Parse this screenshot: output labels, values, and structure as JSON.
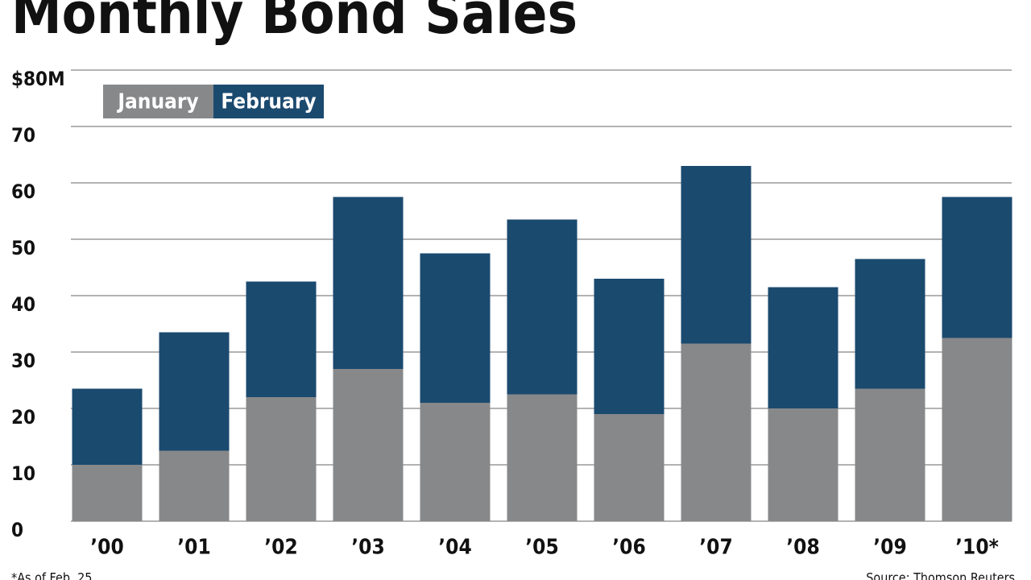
{
  "chart_data": {
    "type": "stacked_bar",
    "title": "Monthly Bond Sales",
    "categories": [
      "’00",
      "’01",
      "’02",
      "’03",
      "’04",
      "’05",
      "’06",
      "’07",
      "’08",
      "’09",
      "’10*"
    ],
    "series": [
      {
        "name": "January",
        "color": "#87888a",
        "values": [
          10,
          12.5,
          22,
          27,
          21,
          22.5,
          19,
          31.5,
          20,
          23.5,
          32.5
        ]
      },
      {
        "name": "February",
        "color": "#1b4a6f",
        "values": [
          13.5,
          21,
          20.5,
          30.5,
          26.5,
          31,
          24,
          31.5,
          21.5,
          23,
          25
        ]
      }
    ],
    "ylim": [
      0,
      80
    ],
    "yticks": [
      0,
      10,
      20,
      30,
      40,
      50,
      60,
      70,
      {
        "value": 80,
        "label": "$80M"
      }
    ],
    "grid": true,
    "legend": "top-left",
    "footnote": "*As of Feb. 25",
    "source": "Source: Thomson Reuters"
  }
}
